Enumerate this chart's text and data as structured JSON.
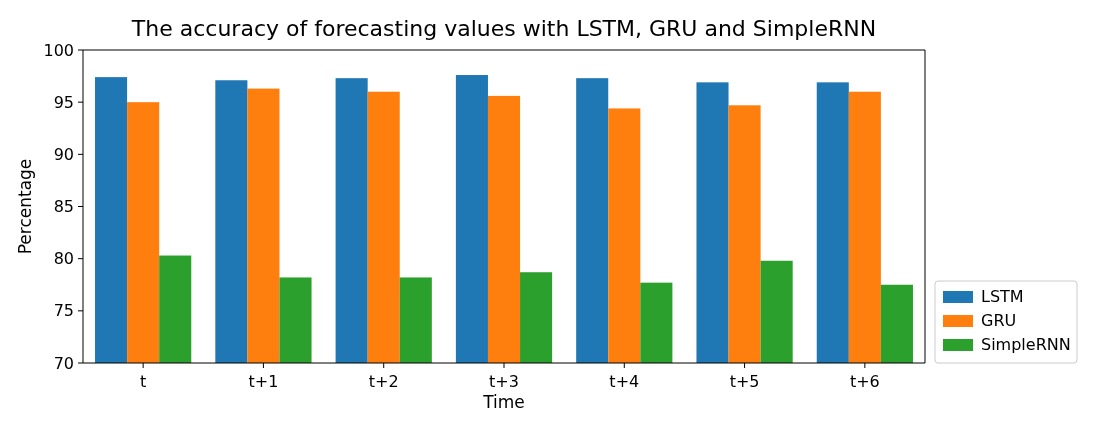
{
  "chart_data": {
    "type": "bar",
    "title": "The accuracy of forecasting values with LSTM, GRU and SimpleRNN",
    "xlabel": "Time",
    "ylabel": "Percentage",
    "categories": [
      "t",
      "t+1",
      "t+2",
      "t+3",
      "t+4",
      "t+5",
      "t+6"
    ],
    "series": [
      {
        "name": "LSTM",
        "color": "#1f77b4",
        "values": [
          97.4,
          97.1,
          97.3,
          97.6,
          97.3,
          96.9,
          96.9
        ]
      },
      {
        "name": "GRU",
        "color": "#ff7f0e",
        "values": [
          95.0,
          96.3,
          96.0,
          95.6,
          94.4,
          94.7,
          96.0
        ]
      },
      {
        "name": "SimpleRNN",
        "color": "#2ca02c",
        "values": [
          80.3,
          78.2,
          78.2,
          78.7,
          77.7,
          79.8,
          77.5
        ]
      }
    ],
    "ylim": [
      70,
      100
    ],
    "yticks": [
      70,
      75,
      80,
      85,
      90,
      95,
      100
    ],
    "legend": "bottom right"
  }
}
